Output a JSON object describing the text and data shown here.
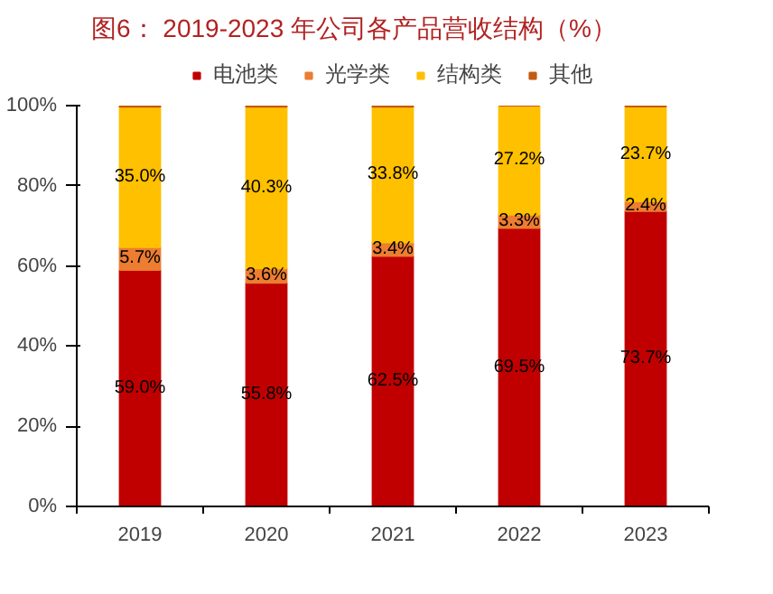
{
  "chart_data": {
    "type": "bar",
    "title": "图6：  2019-2023 年公司各产品营收结构（%）",
    "categories": [
      "2019",
      "2020",
      "2021",
      "2022",
      "2023"
    ],
    "stacked": true,
    "series": [
      {
        "name": "电池类",
        "color": "#c00000",
        "values": [
          59.0,
          55.8,
          62.5,
          69.5,
          73.7
        ],
        "value_labels": [
          "59.0%",
          "55.8%",
          "62.5%",
          "69.5%",
          "73.7%"
        ]
      },
      {
        "name": "光学类",
        "color": "#ed7d31",
        "values": [
          5.7,
          3.6,
          3.4,
          3.3,
          2.4
        ],
        "value_labels": [
          "5.7%",
          "3.6%",
          "3.4%",
          "3.3%",
          "2.4%"
        ]
      },
      {
        "name": "结构类",
        "color": "#ffc000",
        "values": [
          35.0,
          40.3,
          33.8,
          27.2,
          23.7
        ],
        "value_labels": [
          "35.0%",
          "40.3%",
          "33.8%",
          "27.2%",
          "23.7%"
        ]
      },
      {
        "name": "其他",
        "color": "#c55a11",
        "values": [
          0.3,
          0.3,
          0.3,
          0.0,
          0.2
        ]
      }
    ],
    "ylim": [
      0,
      100
    ],
    "yticks": [
      {
        "value": 0,
        "label": "0%"
      },
      {
        "value": 20,
        "label": "20%"
      },
      {
        "value": 40,
        "label": "40%"
      },
      {
        "value": 60,
        "label": "60%"
      },
      {
        "value": 80,
        "label": "80%"
      },
      {
        "value": 100,
        "label": "100%"
      }
    ],
    "grid": false,
    "legend": "top"
  }
}
